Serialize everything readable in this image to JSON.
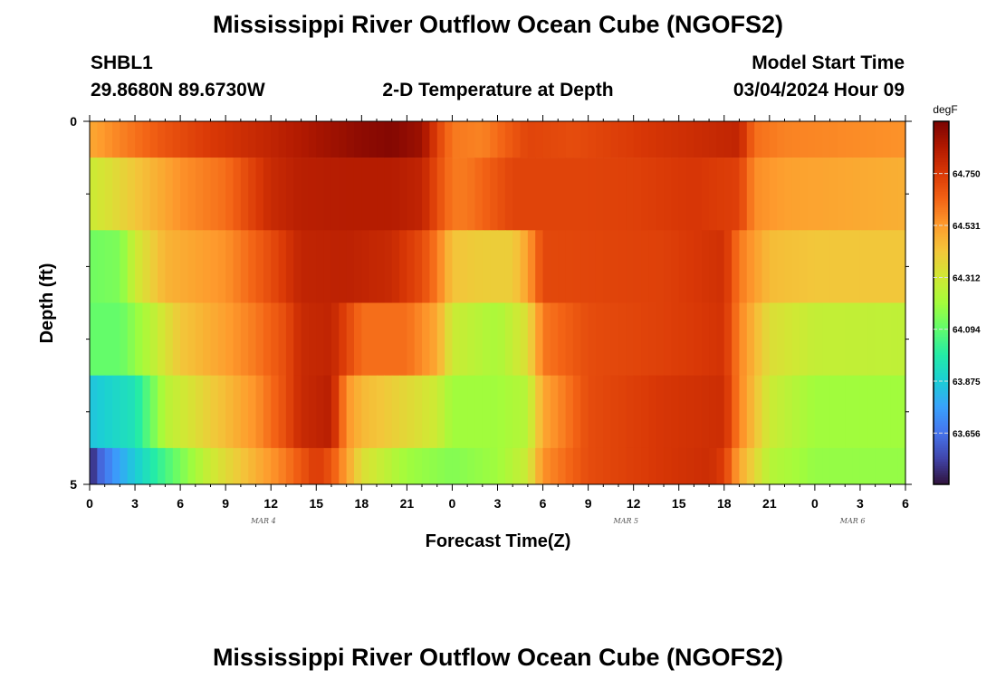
{
  "header": {
    "title": "Mississippi River Outflow Ocean Cube (NGOFS2)",
    "station_id": "SHBL1",
    "station_coords": "29.8680N  89.6730W",
    "subtitle": "2-D Temperature at Depth",
    "model_start_label": "Model Start Time",
    "model_start_value": "03/04/2024 Hour 09"
  },
  "footer": {
    "title": "Mississippi River Outflow Ocean Cube (NGOFS2)"
  },
  "chart_data": {
    "type": "heatmap",
    "xlabel": "Forecast Time(Z)",
    "ylabel": "Depth (ft)",
    "x_tick_labels": [
      "0",
      "3",
      "6",
      "9",
      "12",
      "15",
      "18",
      "21",
      "0",
      "3",
      "6",
      "9",
      "12",
      "15",
      "18",
      "21",
      "0",
      "3",
      "6"
    ],
    "date_labels": [
      {
        "text": "MAR 4",
        "at_hour": 11.5
      },
      {
        "text": "MAR 5",
        "at_hour": 35.5
      },
      {
        "text": "MAR 6",
        "at_hour": 50.5
      }
    ],
    "x_range_hours": [
      0,
      54
    ],
    "y_tick_labels": [
      "0",
      "5"
    ],
    "y_range_ft": [
      0,
      5
    ],
    "layer_boundaries_ft": [
      0,
      0.5,
      1.5,
      2.5,
      3.5,
      4.5,
      5.0
    ],
    "time_step_hours": 0.5,
    "colorbar": {
      "unit": "degF",
      "min": 63.44,
      "max": 64.97,
      "tick_values": [
        63.656,
        63.875,
        64.094,
        64.312,
        64.531,
        64.75
      ],
      "tick_labels": [
        "63.656",
        "63.875",
        "64.094",
        "64.312",
        "64.531",
        "64.750"
      ]
    },
    "colormap": [
      "#30123b",
      "#4145ab",
      "#4675ed",
      "#39a2fc",
      "#1bcfd4",
      "#24eca6",
      "#61fc6c",
      "#a4fc3b",
      "#d1e834",
      "#f3c63a",
      "#fe9b2d",
      "#f36315",
      "#d93806",
      "#b11901",
      "#7a0402"
    ],
    "missing_color": "#ffffff",
    "layers": [
      {
        "depth_ft": 0.0,
        "key_hours": [
          0,
          2,
          5,
          8,
          12,
          15,
          18,
          20,
          22,
          23,
          24,
          26,
          29,
          32,
          37,
          43,
          44,
          46,
          49,
          54
        ],
        "key_values": [
          64.5,
          64.58,
          64.68,
          64.75,
          64.82,
          64.88,
          64.93,
          64.95,
          64.9,
          64.73,
          64.6,
          64.58,
          64.72,
          64.7,
          64.76,
          64.82,
          64.62,
          64.58,
          64.57,
          64.55
        ]
      },
      {
        "depth_ft": 1.0,
        "key_hours": [
          0,
          1,
          3,
          6,
          9,
          12,
          14,
          17,
          20,
          22,
          23,
          24,
          25,
          28,
          32,
          36,
          40,
          43,
          44,
          46,
          50,
          54
        ],
        "key_values": [
          64.3,
          64.33,
          64.42,
          64.55,
          64.62,
          64.8,
          64.84,
          64.85,
          64.85,
          64.82,
          64.7,
          64.6,
          64.6,
          64.72,
          64.72,
          64.73,
          64.76,
          64.73,
          64.56,
          64.52,
          64.5,
          64.48
        ]
      },
      {
        "depth_ft": 2.0,
        "key_hours": [
          0,
          2,
          3,
          5,
          9,
          12,
          14,
          17,
          20,
          22,
          23,
          24,
          26,
          28,
          29,
          30,
          34,
          38,
          42,
          43,
          45,
          48,
          54
        ],
        "key_values": [
          64.12,
          64.14,
          64.3,
          64.47,
          64.55,
          64.7,
          64.82,
          64.83,
          64.8,
          64.7,
          64.6,
          64.43,
          64.4,
          64.4,
          64.52,
          64.71,
          64.72,
          64.73,
          64.78,
          64.6,
          64.45,
          64.42,
          64.42
        ]
      },
      {
        "depth_ft": 3.0,
        "key_hours": [
          0,
          2,
          4,
          6,
          9,
          11,
          13,
          14,
          16,
          17,
          18,
          21,
          23,
          24,
          27,
          29,
          30,
          33,
          38,
          42,
          43,
          45,
          48,
          54
        ],
        "key_values": [
          64.1,
          64.1,
          64.25,
          64.42,
          64.52,
          64.6,
          64.7,
          64.8,
          64.82,
          64.72,
          64.62,
          64.62,
          64.5,
          64.3,
          64.22,
          64.35,
          64.6,
          64.7,
          64.73,
          64.77,
          64.58,
          64.35,
          64.28,
          64.27
        ]
      },
      {
        "depth_ft": 4.0,
        "key_hours": [
          0,
          3,
          5,
          8,
          11,
          13,
          14,
          16,
          17,
          18,
          20,
          23,
          24,
          27,
          29,
          30,
          33,
          38,
          42,
          43,
          45,
          48,
          54
        ],
        "key_values": [
          63.85,
          63.95,
          64.25,
          64.4,
          64.55,
          64.7,
          64.8,
          64.84,
          64.55,
          64.46,
          64.4,
          64.3,
          64.2,
          64.2,
          64.25,
          64.5,
          64.7,
          64.76,
          64.79,
          64.58,
          64.3,
          64.2,
          64.2
        ]
      },
      {
        "depth_ft": 4.75,
        "key_hours": [
          0,
          0.5,
          2,
          5,
          8,
          11,
          13,
          15,
          16,
          17,
          18,
          21,
          24,
          27,
          29,
          30,
          33,
          38,
          41,
          42,
          43,
          45,
          48,
          54
        ],
        "key_values": [
          63.45,
          63.6,
          63.78,
          64.05,
          64.3,
          64.48,
          64.6,
          64.75,
          64.68,
          64.52,
          64.35,
          64.2,
          64.15,
          64.2,
          64.3,
          64.55,
          64.7,
          64.76,
          64.79,
          64.74,
          64.5,
          64.25,
          64.18,
          64.18
        ]
      }
    ]
  }
}
